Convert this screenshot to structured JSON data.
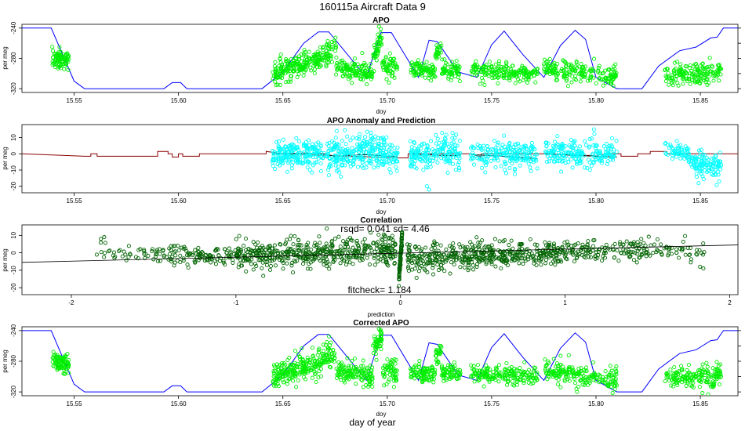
{
  "figure": {
    "title": "160115a   Aircraft Data 9",
    "footer_label": "day of year"
  },
  "colors": {
    "apo_points": "#00ee00",
    "model_line": "#0000ff",
    "anomaly_points": "#00ffff",
    "anomaly_line": "#8b0000",
    "prediction_line": "#000000",
    "corr_points": "#006400",
    "axis": "#000000"
  },
  "chart_data": [
    {
      "id": "apo",
      "type": "scatter",
      "title": "APO",
      "xlabel": "doy",
      "ylabel": "per meg",
      "xlim": [
        15.525,
        15.868
      ],
      "ylim": [
        -325,
        -235
      ],
      "xticks": [
        15.55,
        15.6,
        15.65,
        15.7,
        15.75,
        15.8,
        15.85
      ],
      "xtick_labels": [
        "15.55",
        "15.60",
        "15.65",
        "15.70",
        "15.75",
        "15.80",
        "15.85"
      ],
      "yticks": [
        -240,
        -280,
        -320
      ],
      "ytick_labels": [
        "-240",
        "-280",
        "-320"
      ],
      "right_ticks": [
        -240,
        -260,
        -280,
        -300,
        -320
      ],
      "series": [
        {
          "kind": "line",
          "color": "model_line",
          "x": [
            15.525,
            15.539,
            15.55,
            15.555,
            15.593,
            15.597,
            15.601,
            15.604,
            15.64,
            15.65,
            15.66,
            15.667,
            15.672,
            15.69,
            15.697,
            15.702,
            15.715,
            15.72,
            15.724,
            15.734,
            15.743,
            15.75,
            15.756,
            15.765,
            15.775,
            15.783,
            15.79,
            15.795,
            15.8,
            15.81,
            15.815,
            15.822,
            15.83,
            15.84,
            15.848,
            15.855,
            15.858,
            15.861,
            15.868
          ],
          "y": [
            -240,
            -240,
            -310,
            -320,
            -320,
            -312,
            -312,
            -320,
            -320,
            -298,
            -260,
            -245,
            -245,
            -305,
            -246,
            -246,
            -305,
            -256,
            -258,
            -298,
            -305,
            -262,
            -244,
            -275,
            -305,
            -263,
            -243,
            -255,
            -305,
            -320,
            -320,
            -320,
            -290,
            -270,
            -265,
            -253,
            -252,
            -240,
            -240
          ]
        },
        {
          "kind": "points",
          "color": "apo_points",
          "clusters": [
            {
              "x": [
                15.5395,
                15.5475
              ],
              "y0": -279,
              "y1": -283,
              "sd": 6,
              "n": 90
            },
            {
              "x": [
                15.645,
                15.67
              ],
              "y0": -300,
              "y1": -278,
              "sd": 8,
              "n": 220
            },
            {
              "x": [
                15.6705,
                15.6755
              ],
              "y0": -272,
              "y1": -268,
              "sd": 10,
              "n": 40
            },
            {
              "x": [
                15.6755,
                15.693
              ],
              "y0": -292,
              "y1": -300,
              "sd": 7,
              "n": 130
            },
            {
              "x": [
                15.693,
                15.6975
              ],
              "y0": -280,
              "y1": -250,
              "sd": 8,
              "n": 45
            },
            {
              "x": [
                15.6975,
                15.705
              ],
              "y0": -292,
              "y1": -296,
              "sd": 8,
              "n": 55
            },
            {
              "x": [
                15.711,
                15.723
              ],
              "y0": -292,
              "y1": -298,
              "sd": 6,
              "n": 90
            },
            {
              "x": [
                15.723,
                15.726
              ],
              "y0": -275,
              "y1": -262,
              "sd": 6,
              "n": 25
            },
            {
              "x": [
                15.726,
                15.735
              ],
              "y0": -294,
              "y1": -298,
              "sd": 6,
              "n": 65
            },
            {
              "x": [
                15.74,
                15.772
              ],
              "y0": -296,
              "y1": -300,
              "sd": 6,
              "n": 190
            },
            {
              "x": [
                15.775,
                15.81
              ],
              "y0": -292,
              "y1": -305,
              "sd": 7,
              "n": 200
            },
            {
              "x": [
                15.833,
                15.86
              ],
              "y0": -303,
              "y1": -300,
              "sd": 7,
              "n": 170
            }
          ],
          "singles": [
            [
              15.696,
              -238
            ]
          ]
        }
      ]
    },
    {
      "id": "anomaly",
      "type": "scatter",
      "title": "APO Anomaly and Prediction",
      "xlabel": "doy",
      "ylabel": "per meg",
      "xlim": [
        15.525,
        15.868
      ],
      "ylim": [
        -24,
        18
      ],
      "xticks": [
        15.55,
        15.6,
        15.65,
        15.7,
        15.75,
        15.8,
        15.85
      ],
      "xtick_labels": [
        "15.55",
        "15.60",
        "15.65",
        "15.70",
        "15.75",
        "15.80",
        "15.85"
      ],
      "yticks": [
        10,
        0,
        -10,
        -20
      ],
      "ytick_labels": [
        "10",
        "0",
        "-10",
        "-20"
      ],
      "right_ticks": [],
      "series": [
        {
          "kind": "line",
          "color": "anomaly_line",
          "x": [
            15.525,
            15.555,
            15.556,
            15.558,
            15.558,
            15.561,
            15.561,
            15.59,
            15.59,
            15.595,
            15.595,
            15.597,
            15.597,
            15.6,
            15.6,
            15.602,
            15.602,
            15.61,
            15.61,
            15.642,
            15.642,
            15.65,
            15.705,
            15.71,
            15.71,
            15.74,
            15.745,
            15.745,
            15.778,
            15.778,
            15.795,
            15.8,
            15.805,
            15.812,
            15.812,
            15.82,
            15.82,
            15.826,
            15.826,
            15.834,
            15.834,
            15.868
          ],
          "y": [
            0,
            -1.5,
            -1.5,
            -1.5,
            0,
            0,
            -1.5,
            -1.5,
            1.5,
            1.5,
            0,
            0,
            -2,
            -2,
            0,
            0,
            -1.5,
            -1.5,
            0,
            0,
            1.5,
            0,
            -2.5,
            -2.5,
            0,
            0,
            -2,
            0,
            0,
            0,
            -1,
            -1,
            0,
            0,
            -1.5,
            -1.5,
            0,
            0,
            1.5,
            1.5,
            0,
            0
          ]
        },
        {
          "kind": "line",
          "color": "prediction_line",
          "x": [
            15.645,
            15.66,
            15.67,
            15.676,
            15.68,
            15.69,
            15.7,
            15.705
          ],
          "y": [
            0,
            0.5,
            0,
            -2,
            -1,
            -0.5,
            -1.5,
            -1.5
          ]
        },
        {
          "kind": "line",
          "color": "prediction_line",
          "x": [
            15.711,
            15.718,
            15.727,
            15.735
          ],
          "y": [
            0,
            -0.5,
            -1,
            -1
          ]
        },
        {
          "kind": "line",
          "color": "prediction_line",
          "x": [
            15.74,
            15.755,
            15.772
          ],
          "y": [
            -0.5,
            -1.5,
            -3
          ]
        },
        {
          "kind": "line",
          "color": "prediction_line",
          "x": [
            15.775,
            15.79,
            15.81
          ],
          "y": [
            0,
            -1,
            -2
          ]
        },
        {
          "kind": "points",
          "color": "anomaly_points",
          "clusters": [
            {
              "x": [
                15.645,
                15.66
              ],
              "y0": -2,
              "y1": 1,
              "sd": 4,
              "n": 130
            },
            {
              "x": [
                15.66,
                15.676
              ],
              "y0": 0,
              "y1": 1,
              "sd": 5,
              "n": 130
            },
            {
              "x": [
                15.676,
                15.693
              ],
              "y0": -2,
              "y1": 4,
              "sd": 5,
              "n": 140
            },
            {
              "x": [
                15.693,
                15.705
              ],
              "y0": 2,
              "y1": -1,
              "sd": 5,
              "n": 100
            },
            {
              "x": [
                15.711,
                15.723
              ],
              "y0": -1,
              "y1": -1,
              "sd": 4,
              "n": 90
            },
            {
              "x": [
                15.723,
                15.735
              ],
              "y0": 4,
              "y1": -1,
              "sd": 5,
              "n": 90
            },
            {
              "x": [
                15.74,
                15.772
              ],
              "y0": 0,
              "y1": -1,
              "sd": 4,
              "n": 190
            },
            {
              "x": [
                15.775,
                15.81
              ],
              "y0": 2,
              "y1": -1,
              "sd": 4,
              "n": 210
            },
            {
              "x": [
                15.833,
                15.845
              ],
              "y0": 3,
              "y1": 0,
              "sd": 3,
              "n": 60
            },
            {
              "x": [
                15.845,
                15.86
              ],
              "y0": -5,
              "y1": -8,
              "sd": 4,
              "n": 110
            }
          ],
          "singles": [
            [
              15.719,
              -20
            ],
            [
              15.72,
              -22
            ],
            [
              15.757,
              -12
            ],
            [
              15.799,
              15
            ],
            [
              15.859,
              -17
            ]
          ]
        }
      ]
    },
    {
      "id": "correlation",
      "type": "scatter",
      "title": "Correlation",
      "xlabel": "prediction",
      "ylabel": "per meg",
      "xlim": [
        -2.3,
        2.05
      ],
      "ylim": [
        -24,
        16
      ],
      "xticks": [
        -2,
        -1,
        0,
        1,
        2
      ],
      "xtick_labels": [
        "-2",
        "-1",
        "0",
        "1",
        "2"
      ],
      "yticks": [
        10,
        0,
        -10,
        -20
      ],
      "ytick_labels": [
        "10",
        "0",
        "-10",
        "-20"
      ],
      "right_ticks": [],
      "annotation_top": "rsqd= 0.041 sd= 4.46",
      "annotation_bottom": "fitcheck= 1.184",
      "fit": {
        "intercept": -0.2,
        "slope": 2.3
      },
      "series": [
        {
          "kind": "points",
          "color": "corr_points",
          "clusters": [
            {
              "x": [
                -1.85,
                -1.5
              ],
              "y0": 1,
              "y1": -1,
              "sd": 3,
              "n": 35
            },
            {
              "x": [
                -1.5,
                -1.0
              ],
              "y0": -1,
              "y1": -2,
              "sd": 3,
              "n": 120
            },
            {
              "x": [
                -1.0,
                -0.5
              ],
              "y0": -2,
              "y1": 0,
              "sd": 4,
              "n": 250
            },
            {
              "x": [
                -0.5,
                -0.03
              ],
              "y0": 0,
              "y1": 2,
              "sd": 4,
              "n": 240
            },
            {
              "x": [
                0.04,
                0.5
              ],
              "y0": -4,
              "y1": -1,
              "sd": 4,
              "n": 230
            },
            {
              "x": [
                0.5,
                1.0
              ],
              "y0": -1,
              "y1": 0,
              "sd": 3.5,
              "n": 230
            },
            {
              "x": [
                1.0,
                1.5
              ],
              "y0": 0,
              "y1": 2,
              "sd": 3,
              "n": 140
            },
            {
              "x": [
                1.5,
                1.85
              ],
              "y0": 2,
              "y1": 1,
              "sd": 3,
              "n": 50
            },
            {
              "x": [
                -0.01,
                0.01
              ],
              "y0": -15,
              "y1": 10,
              "sd": 2,
              "n": 90
            }
          ],
          "singles": [
            [
              -1.8,
              9
            ],
            [
              -1.82,
              8
            ],
            [
              1.82,
              -8
            ],
            [
              1.84,
              -9
            ]
          ]
        }
      ]
    },
    {
      "id": "corrected",
      "type": "scatter",
      "title": "Corrected APO",
      "xlabel": "doy",
      "ylabel": "per meg",
      "xlim": [
        15.525,
        15.868
      ],
      "ylim": [
        -325,
        -235
      ],
      "xticks": [
        15.55,
        15.6,
        15.65,
        15.7,
        15.75,
        15.8,
        15.85
      ],
      "xtick_labels": [
        "15.55",
        "15.60",
        "15.65",
        "15.70",
        "15.75",
        "15.80",
        "15.85"
      ],
      "yticks": [
        -240,
        -280,
        -320
      ],
      "ytick_labels": [
        "-240",
        "-280",
        "-320"
      ],
      "right_ticks": [
        -240,
        -260,
        -280,
        -300,
        -320
      ],
      "series": [
        {
          "kind": "line",
          "color": "model_line",
          "x": [
            15.525,
            15.539,
            15.55,
            15.555,
            15.593,
            15.597,
            15.601,
            15.604,
            15.64,
            15.65,
            15.66,
            15.667,
            15.672,
            15.69,
            15.697,
            15.702,
            15.715,
            15.72,
            15.724,
            15.734,
            15.743,
            15.75,
            15.756,
            15.765,
            15.775,
            15.783,
            15.79,
            15.795,
            15.8,
            15.81,
            15.815,
            15.822,
            15.83,
            15.84,
            15.848,
            15.855,
            15.858,
            15.861,
            15.868
          ],
          "y": [
            -240,
            -240,
            -310,
            -320,
            -320,
            -312,
            -312,
            -320,
            -320,
            -298,
            -260,
            -245,
            -245,
            -305,
            -246,
            -246,
            -305,
            -256,
            -258,
            -298,
            -305,
            -262,
            -244,
            -275,
            -305,
            -263,
            -243,
            -255,
            -305,
            -320,
            -320,
            -320,
            -290,
            -270,
            -265,
            -253,
            -252,
            -240,
            -240
          ]
        },
        {
          "kind": "points",
          "color": "apo_points",
          "clusters": [
            {
              "x": [
                15.5395,
                15.5475
              ],
              "y0": -279,
              "y1": -283,
              "sd": 6,
              "n": 90
            },
            {
              "x": [
                15.645,
                15.67
              ],
              "y0": -300,
              "y1": -280,
              "sd": 8,
              "n": 220
            },
            {
              "x": [
                15.6705,
                15.6755
              ],
              "y0": -274,
              "y1": -270,
              "sd": 9,
              "n": 40
            },
            {
              "x": [
                15.6755,
                15.693
              ],
              "y0": -292,
              "y1": -300,
              "sd": 7,
              "n": 130
            },
            {
              "x": [
                15.693,
                15.6975
              ],
              "y0": -262,
              "y1": -248,
              "sd": 7,
              "n": 45
            },
            {
              "x": [
                15.6975,
                15.705
              ],
              "y0": -292,
              "y1": -296,
              "sd": 8,
              "n": 55
            },
            {
              "x": [
                15.711,
                15.723
              ],
              "y0": -292,
              "y1": -298,
              "sd": 6,
              "n": 90
            },
            {
              "x": [
                15.723,
                15.726
              ],
              "y0": -275,
              "y1": -262,
              "sd": 6,
              "n": 25
            },
            {
              "x": [
                15.726,
                15.735
              ],
              "y0": -294,
              "y1": -298,
              "sd": 6,
              "n": 65
            },
            {
              "x": [
                15.74,
                15.772
              ],
              "y0": -296,
              "y1": -300,
              "sd": 6,
              "n": 190
            },
            {
              "x": [
                15.775,
                15.81
              ],
              "y0": -292,
              "y1": -305,
              "sd": 7,
              "n": 200
            },
            {
              "x": [
                15.833,
                15.86
              ],
              "y0": -303,
              "y1": -300,
              "sd": 7,
              "n": 170
            }
          ],
          "singles": [
            [
              15.696,
              -238
            ]
          ]
        }
      ]
    }
  ]
}
